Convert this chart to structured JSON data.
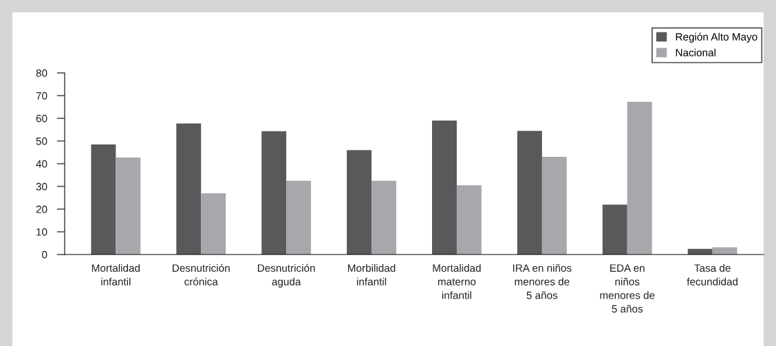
{
  "chart_data": {
    "type": "bar",
    "categories": [
      "Mortalidad\ninfantil",
      "Desnutrición\ncrónica",
      "Desnutrición\naguda",
      "Morbilidad\ninfantil",
      "Mortalidad\nmaterno\ninfantil",
      "IRA en niños\nmenores de\n5 años",
      "EDA en\nniños\nmenores de\n5 años",
      "Tasa de\nfecundidad"
    ],
    "series": [
      {
        "name": "Región Alto Mayo",
        "color": "#58595b",
        "values": [
          48.5,
          57.7,
          54.3,
          46,
          59,
          54.5,
          22,
          2.5
        ]
      },
      {
        "name": "Nacional",
        "color": "#a7a8ab",
        "values": [
          42.7,
          27,
          32.5,
          32.5,
          30.5,
          43,
          67.3,
          3.2
        ]
      }
    ],
    "ylim": [
      0,
      80
    ],
    "yticks": [
      0,
      10,
      20,
      30,
      40,
      50,
      60,
      70,
      80
    ],
    "grid": false,
    "legend": "top right"
  }
}
